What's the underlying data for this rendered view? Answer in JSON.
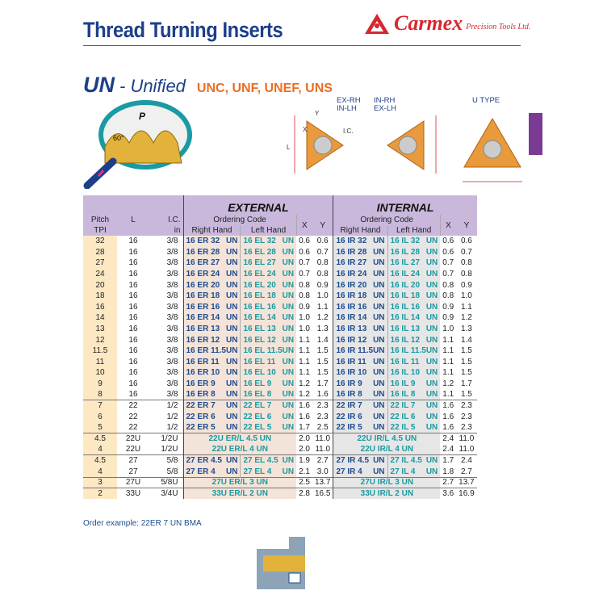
{
  "header": {
    "title": "Thread Turning Inserts",
    "logo_brand": "Carmex",
    "logo_sub": "Precision Tools Ltd."
  },
  "section": {
    "code": "UN",
    "name": "- Unified",
    "types": "UNC, UNF, UNEF, UNS"
  },
  "diagrams": {
    "labels": [
      "EX-RH\nIN-LH",
      "IN-RH\nEX-LH",
      "U TYPE"
    ],
    "dims": [
      "X",
      "Y",
      "L",
      "I.C."
    ]
  },
  "table": {
    "external": "EXTERNAL",
    "internal": "INTERNAL",
    "ordering_code": "Ordering Code",
    "right_hand": "Right Hand",
    "left_hand": "Left Hand",
    "pitch": "Pitch",
    "tpi": "TPI",
    "l": "L",
    "ic": "I.C.",
    "in": "in",
    "x": "X",
    "y": "Y",
    "rows": [
      {
        "p": "32",
        "l": "16",
        "ic": "3/8",
        "erh": "16 ER 32 UN",
        "elh": "16 EL 32 UN",
        "ex": "0.6",
        "ey": "0.6",
        "irh": "16 IR 32 UN",
        "ilh": "16 IL 32 UN",
        "ix": "0.6",
        "iy": "0.6"
      },
      {
        "p": "28",
        "l": "16",
        "ic": "3/8",
        "erh": "16 ER 28 UN",
        "elh": "16 EL 28 UN",
        "ex": "0.6",
        "ey": "0.7",
        "irh": "16 IR 28 UN",
        "ilh": "16 IL 28 UN",
        "ix": "0.6",
        "iy": "0.7"
      },
      {
        "p": "27",
        "l": "16",
        "ic": "3/8",
        "erh": "16 ER 27 UN",
        "elh": "16 EL 27 UN",
        "ex": "0.7",
        "ey": "0.8",
        "irh": "16 IR 27 UN",
        "ilh": "16 IL 27 UN",
        "ix": "0.7",
        "iy": "0.8"
      },
      {
        "p": "24",
        "l": "16",
        "ic": "3/8",
        "erh": "16 ER 24 UN",
        "elh": "16 EL 24 UN",
        "ex": "0.7",
        "ey": "0.8",
        "irh": "16 IR 24 UN",
        "ilh": "16 IL 24 UN",
        "ix": "0.7",
        "iy": "0.8"
      },
      {
        "p": "20",
        "l": "16",
        "ic": "3/8",
        "erh": "16 ER 20 UN",
        "elh": "16 EL 20 UN",
        "ex": "0.8",
        "ey": "0.9",
        "irh": "16 IR 20 UN",
        "ilh": "16 IL 20 UN",
        "ix": "0.8",
        "iy": "0.9"
      },
      {
        "p": "18",
        "l": "16",
        "ic": "3/8",
        "erh": "16 ER 18 UN",
        "elh": "16 EL 18 UN",
        "ex": "0.8",
        "ey": "1.0",
        "irh": "16 IR 18 UN",
        "ilh": "16 IL 18 UN",
        "ix": "0.8",
        "iy": "1.0"
      },
      {
        "p": "16",
        "l": "16",
        "ic": "3/8",
        "erh": "16 ER 16 UN",
        "elh": "16 EL 16 UN",
        "ex": "0.9",
        "ey": "1.1",
        "irh": "16 IR 16 UN",
        "ilh": "16 IL 16 UN",
        "ix": "0.9",
        "iy": "1.1"
      },
      {
        "p": "14",
        "l": "16",
        "ic": "3/8",
        "erh": "16 ER 14 UN",
        "elh": "16 EL 14 UN",
        "ex": "1.0",
        "ey": "1.2",
        "irh": "16 IR 14 UN",
        "ilh": "16 IL 14 UN",
        "ix": "0.9",
        "iy": "1.2"
      },
      {
        "p": "13",
        "l": "16",
        "ic": "3/8",
        "erh": "16 ER 13 UN",
        "elh": "16 EL 13 UN",
        "ex": "1.0",
        "ey": "1.3",
        "irh": "16 IR 13 UN",
        "ilh": "16 IL 13 UN",
        "ix": "1.0",
        "iy": "1.3"
      },
      {
        "p": "12",
        "l": "16",
        "ic": "3/8",
        "erh": "16 ER 12 UN",
        "elh": "16 EL 12 UN",
        "ex": "1.1",
        "ey": "1.4",
        "irh": "16 IR 12 UN",
        "ilh": "16 IL 12 UN",
        "ix": "1.1",
        "iy": "1.4"
      },
      {
        "p": "11.5",
        "l": "16",
        "ic": "3/8",
        "erh": "16 ER 11.5 UN",
        "elh": "16 EL 11.5 UN",
        "ex": "1.1",
        "ey": "1.5",
        "irh": "16 IR 11.5 UN",
        "ilh": "16 IL 11.5 UN",
        "ix": "1.1",
        "iy": "1.5"
      },
      {
        "p": "11",
        "l": "16",
        "ic": "3/8",
        "erh": "16 ER 11 UN",
        "elh": "16 EL 11 UN",
        "ex": "1.1",
        "ey": "1.5",
        "irh": "16 IR 11 UN",
        "ilh": "16 IL 11 UN",
        "ix": "1.1",
        "iy": "1.5"
      },
      {
        "p": "10",
        "l": "16",
        "ic": "3/8",
        "erh": "16 ER 10 UN",
        "elh": "16 EL 10 UN",
        "ex": "1.1",
        "ey": "1.5",
        "irh": "16 IR 10 UN",
        "ilh": "16 IL 10 UN",
        "ix": "1.1",
        "iy": "1.5"
      },
      {
        "p": "9",
        "l": "16",
        "ic": "3/8",
        "erh": "16 ER 9 UN",
        "elh": "16 EL 9 UN",
        "ex": "1.2",
        "ey": "1.7",
        "irh": "16 IR 9 UN",
        "ilh": "16 IL 9 UN",
        "ix": "1.2",
        "iy": "1.7"
      },
      {
        "p": "8",
        "l": "16",
        "ic": "3/8",
        "erh": "16 ER 8 UN",
        "elh": "16 EL 8 UN",
        "ex": "1.2",
        "ey": "1.6",
        "irh": "16 IR 8 UN",
        "ilh": "16 IL 8 UN",
        "ix": "1.1",
        "iy": "1.5"
      },
      {
        "p": "7",
        "l": "22",
        "ic": "1/2",
        "erh": "22 ER 7 UN",
        "elh": "22 EL 7 UN",
        "ex": "1.6",
        "ey": "2.3",
        "irh": "22 IR 7 UN",
        "ilh": "22 IL 7 UN",
        "ix": "1.6",
        "iy": "2.3",
        "sep": true
      },
      {
        "p": "6",
        "l": "22",
        "ic": "1/2",
        "erh": "22 ER 6 UN",
        "elh": "22 EL 6 UN",
        "ex": "1.6",
        "ey": "2.3",
        "irh": "22 IR 6 UN",
        "ilh": "22 IL 6 UN",
        "ix": "1.6",
        "iy": "2.3"
      },
      {
        "p": "5",
        "l": "22",
        "ic": "1/2",
        "erh": "22 ER 5 UN",
        "elh": "22 EL 5 UN",
        "ex": "1.7",
        "ey": "2.5",
        "irh": "22 IR 5 UN",
        "ilh": "22 IL 5 UN",
        "ix": "1.6",
        "iy": "2.3"
      },
      {
        "p": "4.5",
        "l": "22U",
        "ic": "1/2U",
        "emerged": "22U ER/L 4.5 UN",
        "ex": "2.0",
        "ey": "11.0",
        "imerged": "22U IR/L 4.5 UN",
        "ix": "2.4",
        "iy": "11.0",
        "sep": true
      },
      {
        "p": "4",
        "l": "22U",
        "ic": "1/2U",
        "emerged": "22U ER/L 4 UN",
        "ex": "2.0",
        "ey": "11.0",
        "imerged": "22U IR/L 4 UN",
        "ix": "2.4",
        "iy": "11.0"
      },
      {
        "p": "4.5",
        "l": "27",
        "ic": "5/8",
        "erh": "27 ER 4.5 UN",
        "elh": "27 EL 4.5 UN",
        "ex": "1.9",
        "ey": "2.7",
        "irh": "27 IR 4.5 UN",
        "ilh": "27 IL 4.5 UN",
        "ix": "1.7",
        "iy": "2.4",
        "sep": true
      },
      {
        "p": "4",
        "l": "27",
        "ic": "5/8",
        "erh": "27 ER 4 UN",
        "elh": "27 EL 4 UN",
        "ex": "2.1",
        "ey": "3.0",
        "irh": "27 IR 4 UN",
        "ilh": "27 IL 4 UN",
        "ix": "1.8",
        "iy": "2.7"
      },
      {
        "p": "3",
        "l": "27U",
        "ic": "5/8U",
        "emerged": "27U ER/L 3 UN",
        "ex": "2.5",
        "ey": "13.7",
        "imerged": "27U IR/L 3 UN",
        "ix": "2.7",
        "iy": "13.7",
        "sep": true
      },
      {
        "p": "2",
        "l": "33U",
        "ic": "3/4U",
        "emerged": "33U ER/L 2 UN",
        "ex": "2.8",
        "ey": "16.5",
        "imerged": "33U IR/L 2 UN",
        "ix": "3.6",
        "iy": "16.9",
        "sep": true
      }
    ]
  },
  "footer": {
    "order_example": "Order example: 22ER 7 UN BMA"
  },
  "colors": {
    "title_blue": "#1d3f8a",
    "brand_red": "#d7282f",
    "orange": "#ec6d21",
    "header_purple": "#c9b8dc",
    "tab_purple": "#7b3a94"
  }
}
